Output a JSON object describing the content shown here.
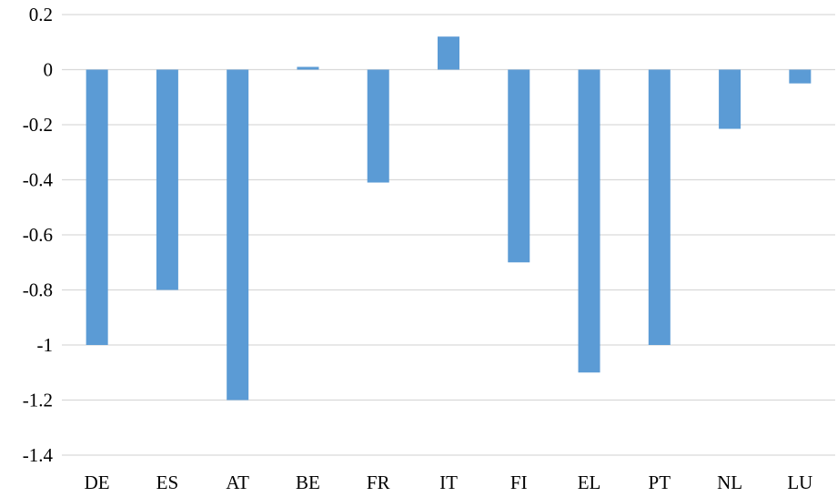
{
  "chart_data": {
    "type": "bar",
    "title": "",
    "xlabel": "",
    "ylabel": "",
    "categories": [
      "DE",
      "ES",
      "AT",
      "BE",
      "FR",
      "IT",
      "FI",
      "EL",
      "PT",
      "NL",
      "LU"
    ],
    "values": [
      -1.0,
      -0.8,
      -1.2,
      0.01,
      -0.41,
      0.12,
      -0.7,
      -1.1,
      -1.0,
      -0.215,
      -0.05
    ],
    "ylim": [
      -1.4,
      0.2
    ],
    "yticks": [
      "0.2",
      "0",
      "-0.2",
      "-0.4",
      "-0.6",
      "-0.8",
      "-1",
      "-1.2",
      "-1.4"
    ],
    "ytick_values": [
      0.2,
      0,
      -0.2,
      -0.4,
      -0.6,
      -0.8,
      -1,
      -1.2,
      -1.4
    ],
    "grid": true,
    "legend": "none",
    "colors": {
      "bar": "#5b9bd5",
      "grid": "#d9d9d9"
    }
  }
}
